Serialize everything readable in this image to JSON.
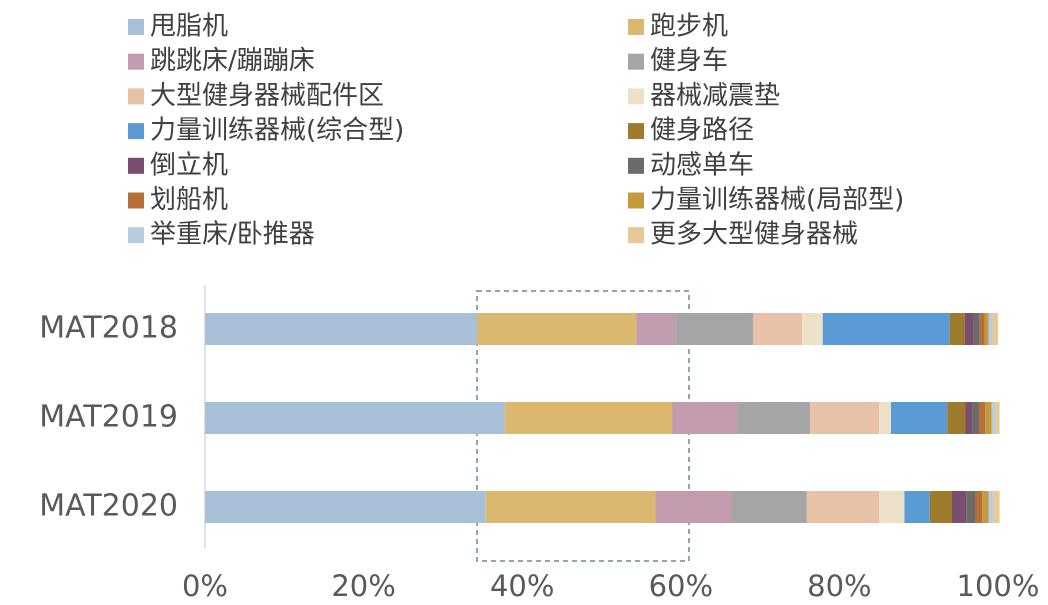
{
  "chart_data": {
    "type": "stacked_bar_horizontal",
    "categories": [
      "MAT2018",
      "MAT2019",
      "MAT2020"
    ],
    "xlim": [
      0,
      100
    ],
    "xticks": [
      {
        "value": 0,
        "label": "0%"
      },
      {
        "value": 20,
        "label": "20%"
      },
      {
        "value": 40,
        "label": "40%"
      },
      {
        "value": 60,
        "label": "60%"
      },
      {
        "value": 80,
        "label": "80%"
      },
      {
        "value": 100,
        "label": "100%"
      }
    ],
    "legend_position": "top",
    "series": [
      {
        "name": "甩脂机",
        "color": "#a7c0d8",
        "values": [
          34.3,
          37.8,
          35.4
        ]
      },
      {
        "name": "跑步机",
        "color": "#dbb76f",
        "values": [
          20.1,
          21.1,
          21.4
        ]
      },
      {
        "name": "跳跳床/蹦蹦床",
        "color": "#c39bae",
        "values": [
          4.9,
          8.2,
          9.6
        ]
      },
      {
        "name": "健身车",
        "color": "#a5a5a5",
        "values": [
          9.8,
          9.2,
          9.5
        ]
      },
      {
        "name": "大型健身器械配件区",
        "color": "#e8c2a8",
        "values": [
          6.2,
          8.7,
          9.1
        ]
      },
      {
        "name": "器械减震垫",
        "color": "#ede0c8",
        "values": [
          2.6,
          1.5,
          3.2
        ]
      },
      {
        "name": "力量训练器械(综合型)",
        "color": "#5b9bd5",
        "values": [
          16.0,
          7.1,
          3.2
        ]
      },
      {
        "name": "健身路径",
        "color": "#9e7a2c",
        "values": [
          1.9,
          2.3,
          2.8
        ]
      },
      {
        "name": "倒立机",
        "color": "#7a4e6e",
        "values": [
          1.1,
          0.9,
          1.8
        ]
      },
      {
        "name": "动感单车",
        "color": "#6b6b6b",
        "values": [
          0.8,
          0.8,
          1.1
        ]
      },
      {
        "name": "划船机",
        "color": "#b5703a",
        "values": [
          0.6,
          0.8,
          0.9
        ]
      },
      {
        "name": "力量训练器械(局部型)",
        "color": "#c49a3e",
        "values": [
          0.5,
          0.8,
          0.8
        ]
      },
      {
        "name": "举重床/卧推器",
        "color": "#b8cce0",
        "values": [
          0.5,
          0.5,
          0.6
        ]
      },
      {
        "name": "更多大型健身器械",
        "color": "#e8c897",
        "values": [
          0.7,
          0.5,
          0.8
        ]
      }
    ]
  }
}
